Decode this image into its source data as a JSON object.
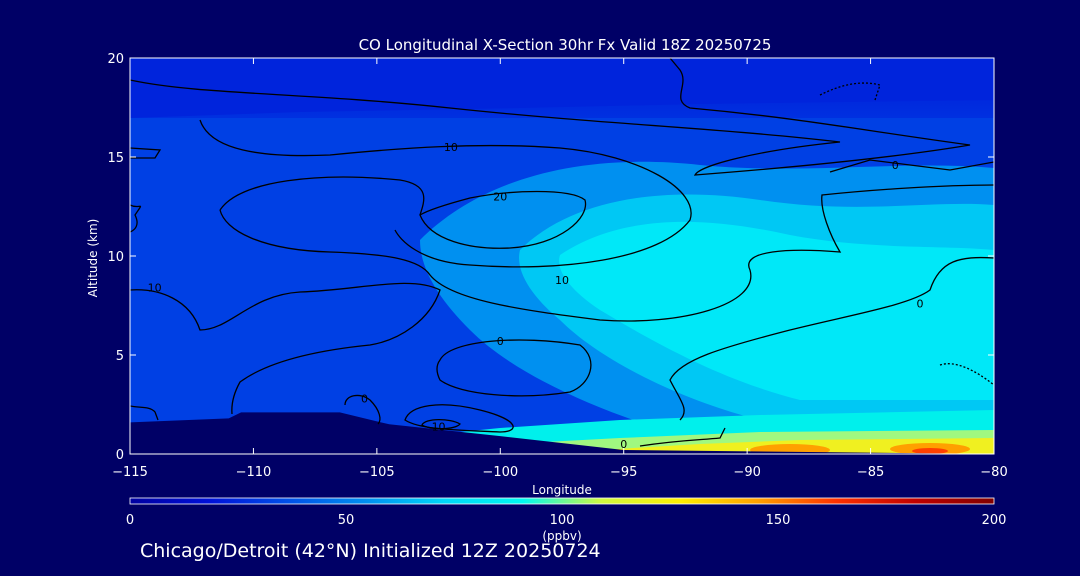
{
  "chart_data": {
    "type": "heatmap",
    "title": "CO Longitudinal X-Section 30hr  Fx Valid 18Z 20250725",
    "xlabel": "Longitude",
    "ylabel": "Altitude (km)",
    "xlim": [
      -115,
      -80
    ],
    "ylim": [
      0,
      20
    ],
    "x_ticks": [
      -115,
      -110,
      -105,
      -100,
      -95,
      -90,
      -85,
      -80
    ],
    "x_tick_labels": [
      "−115",
      "−110",
      "−105",
      "−100",
      "−95",
      "−90",
      "−85",
      "−80"
    ],
    "y_ticks": [
      0,
      5,
      10,
      15,
      20
    ],
    "y_tick_labels": [
      "0",
      "5",
      "10",
      "15",
      "20"
    ],
    "contour_labels": [
      {
        "text": "10",
        "x": -102,
        "y": 15.5
      },
      {
        "text": "20",
        "x": -100,
        "y": 13.0
      },
      {
        "text": "10",
        "x": -114,
        "y": 8.4
      },
      {
        "text": "10",
        "x": -97.5,
        "y": 8.8
      },
      {
        "text": "0",
        "x": -84,
        "y": 14.6
      },
      {
        "text": "0",
        "x": -83,
        "y": 7.6
      },
      {
        "text": "0",
        "x": -100,
        "y": 5.7
      },
      {
        "text": "0",
        "x": -105.5,
        "y": 2.8
      },
      {
        "text": "10",
        "x": -102.5,
        "y": 1.4
      },
      {
        "text": "0",
        "x": -95,
        "y": 0.5
      }
    ],
    "terrain_km": [
      {
        "lon": -115,
        "alt": 1.6
      },
      {
        "lon": -111,
        "alt": 1.8
      },
      {
        "lon": -110.5,
        "alt": 2.1
      },
      {
        "lon": -106.5,
        "alt": 2.1
      },
      {
        "lon": -104.5,
        "alt": 1.5
      },
      {
        "lon": -100,
        "alt": 0.9
      },
      {
        "lon": -95,
        "alt": 0.2
      },
      {
        "lon": -80,
        "alt": 0.0
      }
    ],
    "colorbar": {
      "label": "(ppbv)",
      "min": 0,
      "max": 200,
      "ticks": [
        0,
        50,
        100,
        150,
        200
      ],
      "tick_labels": [
        "0",
        "50",
        "100",
        "150",
        "200"
      ],
      "colors": [
        "#0000a0",
        "#0010d8",
        "#0050e8",
        "#0090f0",
        "#00d8f8",
        "#00f8f0",
        "#d0f840",
        "#fff000",
        "#ffa000",
        "#ff3000",
        "#c00000",
        "#800000"
      ]
    }
  },
  "footer": "Chicago/Detroit (42°N) Initialized 12Z 20250724"
}
